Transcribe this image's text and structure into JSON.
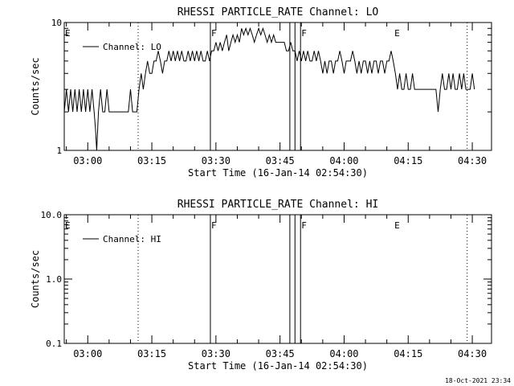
{
  "chart_data": [
    {
      "type": "line",
      "title": "RHESSI PARTICLE_RATE Channel: LO",
      "xlabel": "Start Time (16-Jan-14 02:54:30)",
      "ylabel": "Counts/sec",
      "yscale": "log",
      "ylim": [
        1,
        10
      ],
      "xlim_minutes": [
        0,
        100
      ],
      "x_tick_labels": [
        "03:00",
        "03:15",
        "03:30",
        "03:45",
        "04:00",
        "04:15",
        "04:30"
      ],
      "x_tick_minutes": [
        5.5,
        20.5,
        35.5,
        50.5,
        65.5,
        80.5,
        95.5
      ],
      "y_tick_labels": [
        "1",
        "10"
      ],
      "legend": {
        "label": "Channel: LO",
        "placement": "top-left"
      },
      "dotted_lines_minutes": [
        17.3,
        94.3
      ],
      "solid_lines_minutes": [
        34.2,
        52.8,
        54.0,
        55.3
      ],
      "markers": [
        {
          "label": "E",
          "minute": 0
        },
        {
          "label": "F",
          "minute": 34.2
        },
        {
          "label": "F",
          "minute": 55.3
        },
        {
          "label": "E",
          "minute": 77.1
        }
      ],
      "series": [
        {
          "name": "Channel: LO",
          "points": [
            [
              0,
              2
            ],
            [
              0.5,
              3
            ],
            [
              1,
              2
            ],
            [
              1.5,
              3
            ],
            [
              2,
              2
            ],
            [
              2.5,
              3
            ],
            [
              3,
              2
            ],
            [
              3.5,
              3
            ],
            [
              4,
              2
            ],
            [
              4.5,
              3
            ],
            [
              5,
              2
            ],
            [
              5.5,
              3
            ],
            [
              6,
              2
            ],
            [
              6.5,
              3
            ],
            [
              7,
              2
            ],
            [
              7.3,
              1.5
            ],
            [
              7.6,
              1
            ],
            [
              8,
              2
            ],
            [
              8.5,
              3
            ],
            [
              9,
              2
            ],
            [
              9.5,
              2
            ],
            [
              10,
              3
            ],
            [
              10.5,
              2
            ],
            [
              11,
              2
            ],
            [
              11.5,
              2
            ],
            [
              12,
              2
            ],
            [
              12.5,
              2
            ],
            [
              13,
              2
            ],
            [
              13.5,
              2
            ],
            [
              14,
              2
            ],
            [
              14.5,
              2
            ],
            [
              15,
              2
            ],
            [
              15.5,
              3
            ],
            [
              16,
              2
            ],
            [
              16.5,
              2
            ],
            [
              17,
              2
            ],
            [
              17.5,
              3
            ],
            [
              18,
              4
            ],
            [
              18.5,
              3
            ],
            [
              19,
              4
            ],
            [
              19.5,
              5
            ],
            [
              20,
              4
            ],
            [
              20.5,
              4
            ],
            [
              21,
              5
            ],
            [
              21.5,
              5
            ],
            [
              22,
              6
            ],
            [
              22.5,
              5
            ],
            [
              23,
              4
            ],
            [
              23.5,
              5
            ],
            [
              24,
              5
            ],
            [
              24.5,
              6
            ],
            [
              25,
              5
            ],
            [
              25.5,
              6
            ],
            [
              26,
              5
            ],
            [
              26.5,
              6
            ],
            [
              27,
              5
            ],
            [
              27.5,
              6
            ],
            [
              28,
              5
            ],
            [
              28.5,
              5
            ],
            [
              29,
              6
            ],
            [
              29.5,
              5
            ],
            [
              30,
              6
            ],
            [
              30.5,
              5
            ],
            [
              31,
              6
            ],
            [
              31.5,
              5
            ],
            [
              32,
              6
            ],
            [
              32.5,
              5
            ],
            [
              33,
              5
            ],
            [
              33.5,
              6
            ],
            [
              34,
              5
            ],
            [
              34.5,
              6
            ],
            [
              35,
              6
            ],
            [
              35.5,
              7
            ],
            [
              36,
              6
            ],
            [
              36.5,
              7
            ],
            [
              37,
              6
            ],
            [
              37.5,
              7
            ],
            [
              38,
              8
            ],
            [
              38.5,
              6
            ],
            [
              39,
              7
            ],
            [
              39.5,
              8
            ],
            [
              40,
              7
            ],
            [
              40.5,
              8
            ],
            [
              41,
              7
            ],
            [
              41.5,
              9
            ],
            [
              42,
              8
            ],
            [
              42.5,
              9
            ],
            [
              43,
              8
            ],
            [
              43.5,
              9
            ],
            [
              44,
              8
            ],
            [
              44.5,
              7
            ],
            [
              45,
              8
            ],
            [
              45.5,
              9
            ],
            [
              46,
              8
            ],
            [
              46.5,
              9
            ],
            [
              47,
              8
            ],
            [
              47.5,
              7
            ],
            [
              48,
              8
            ],
            [
              48.5,
              7
            ],
            [
              49,
              8
            ],
            [
              49.5,
              7
            ],
            [
              50,
              7
            ],
            [
              50.5,
              7
            ],
            [
              51,
              7
            ],
            [
              51.5,
              7
            ],
            [
              52,
              6
            ],
            [
              52.5,
              6
            ],
            [
              53,
              7
            ],
            [
              53.5,
              6
            ],
            [
              54,
              6
            ],
            [
              54.5,
              5
            ],
            [
              55,
              6
            ],
            [
              55.5,
              5
            ],
            [
              56,
              6
            ],
            [
              56.5,
              5
            ],
            [
              57,
              6
            ],
            [
              57.5,
              5
            ],
            [
              58,
              5
            ],
            [
              58.5,
              6
            ],
            [
              59,
              5
            ],
            [
              59.5,
              6
            ],
            [
              60,
              5
            ],
            [
              60.5,
              4
            ],
            [
              61,
              5
            ],
            [
              61.5,
              4
            ],
            [
              62,
              5
            ],
            [
              62.5,
              5
            ],
            [
              63,
              4
            ],
            [
              63.5,
              5
            ],
            [
              64,
              5
            ],
            [
              64.5,
              6
            ],
            [
              65,
              5
            ],
            [
              65.5,
              4
            ],
            [
              66,
              5
            ],
            [
              66.5,
              5
            ],
            [
              67,
              5
            ],
            [
              67.5,
              6
            ],
            [
              68,
              5
            ],
            [
              68.5,
              4
            ],
            [
              69,
              5
            ],
            [
              69.5,
              4
            ],
            [
              70,
              5
            ],
            [
              70.5,
              5
            ],
            [
              71,
              4
            ],
            [
              71.5,
              5
            ],
            [
              72,
              4
            ],
            [
              72.5,
              5
            ],
            [
              73,
              5
            ],
            [
              73.5,
              4
            ],
            [
              74,
              5
            ],
            [
              74.5,
              5
            ],
            [
              75,
              4
            ],
            [
              75.5,
              5
            ],
            [
              76,
              5
            ],
            [
              76.5,
              6
            ],
            [
              77,
              5
            ],
            [
              77.5,
              4
            ],
            [
              78,
              3
            ],
            [
              78.5,
              4
            ],
            [
              79,
              3
            ],
            [
              79.5,
              3
            ],
            [
              80,
              4
            ],
            [
              80.5,
              3
            ],
            [
              81,
              3
            ],
            [
              81.5,
              4
            ],
            [
              82,
              3
            ],
            [
              82.5,
              3
            ],
            [
              83,
              3
            ],
            [
              83.5,
              3
            ],
            [
              84,
              3
            ],
            [
              84.5,
              3
            ],
            [
              85,
              3
            ],
            [
              85.5,
              3
            ],
            [
              86,
              3
            ],
            [
              86.5,
              3
            ],
            [
              87,
              3
            ],
            [
              87.5,
              2
            ],
            [
              88,
              3
            ],
            [
              88.5,
              4
            ],
            [
              89,
              3
            ],
            [
              89.5,
              3
            ],
            [
              90,
              4
            ],
            [
              90.5,
              3
            ],
            [
              91,
              4
            ],
            [
              91.5,
              3
            ],
            [
              92,
              3
            ],
            [
              92.5,
              4
            ],
            [
              93,
              3
            ],
            [
              93.5,
              4
            ],
            [
              94,
              3
            ],
            [
              94.5,
              3
            ],
            [
              95,
              3
            ],
            [
              95.5,
              4
            ],
            [
              96,
              3
            ]
          ]
        }
      ]
    },
    {
      "type": "line",
      "title": "RHESSI PARTICLE_RATE Channel: HI",
      "xlabel": "Start Time (16-Jan-14 02:54:30)",
      "ylabel": "Counts/sec",
      "yscale": "log",
      "ylim": [
        0.1,
        10
      ],
      "xlim_minutes": [
        0,
        100
      ],
      "x_tick_labels": [
        "03:00",
        "03:15",
        "03:30",
        "03:45",
        "04:00",
        "04:15",
        "04:30"
      ],
      "x_tick_minutes": [
        5.5,
        20.5,
        35.5,
        50.5,
        65.5,
        80.5,
        95.5
      ],
      "y_tick_labels": [
        "0.1",
        "1.0",
        "10.0"
      ],
      "legend": {
        "label": "Channel: HI",
        "placement": "top-left"
      },
      "dotted_lines_minutes": [
        17.3,
        94.3
      ],
      "solid_lines_minutes": [
        34.2,
        52.8,
        54.0,
        55.3
      ],
      "markers": [
        {
          "label": "E",
          "minute": 0
        },
        {
          "label": "F",
          "minute": 34.2
        },
        {
          "label": "F",
          "minute": 55.3
        },
        {
          "label": "E",
          "minute": 77.1
        }
      ],
      "series": [
        {
          "name": "Channel: HI",
          "points": []
        }
      ]
    }
  ],
  "footer": {
    "timestamp": "18-Oct-2021 23:34"
  }
}
